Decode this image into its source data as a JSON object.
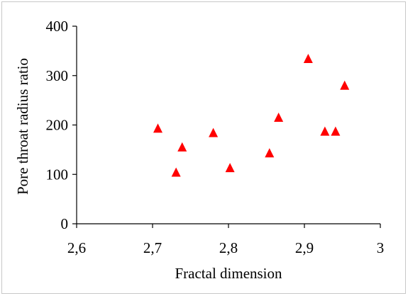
{
  "chart_data": {
    "type": "scatter",
    "title": "",
    "xlabel": "Fractal dimension",
    "ylabel": "Pore throat radius ratio",
    "xlim": [
      2.6,
      3.0
    ],
    "ylim": [
      0,
      400
    ],
    "xticks": [
      2.6,
      2.7,
      2.8,
      2.9,
      3.0
    ],
    "xtick_labels": [
      "2,6",
      "2,7",
      "2,8",
      "2,9",
      "3"
    ],
    "yticks": [
      0,
      100,
      200,
      300,
      400
    ],
    "ytick_labels": [
      "0",
      "100",
      "200",
      "300",
      "400"
    ],
    "grid": false,
    "legend": "none",
    "marker": "triangle",
    "color": "#ff0000",
    "points": [
      {
        "x": 2.707,
        "y": 193
      },
      {
        "x": 2.731,
        "y": 104
      },
      {
        "x": 2.739,
        "y": 155
      },
      {
        "x": 2.78,
        "y": 184
      },
      {
        "x": 2.802,
        "y": 113
      },
      {
        "x": 2.854,
        "y": 143
      },
      {
        "x": 2.866,
        "y": 215
      },
      {
        "x": 2.905,
        "y": 334
      },
      {
        "x": 2.927,
        "y": 187
      },
      {
        "x": 2.941,
        "y": 187
      },
      {
        "x": 2.953,
        "y": 280
      }
    ]
  }
}
